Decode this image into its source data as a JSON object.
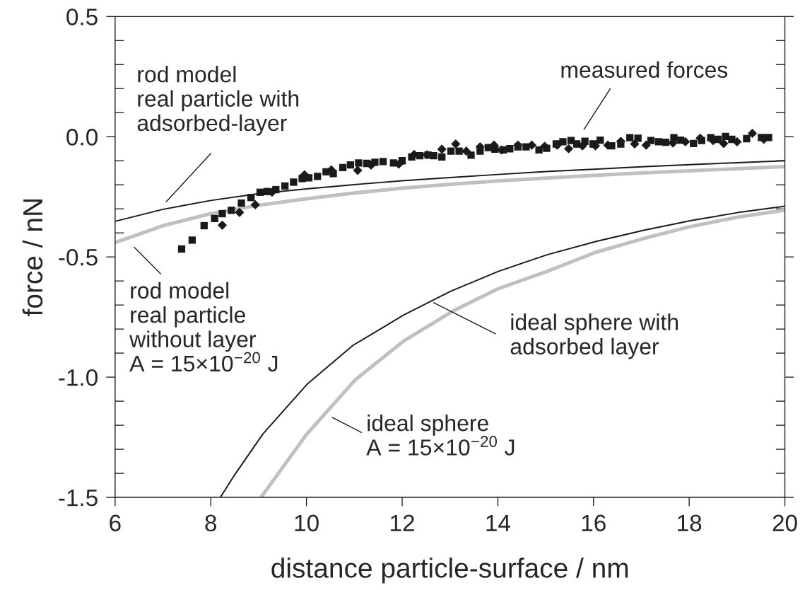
{
  "chart_data": {
    "type": "line",
    "xlabel": "distance particle-surface / nm",
    "ylabel": "force / nN",
    "xlim": [
      6,
      20
    ],
    "xticks": [
      6,
      8,
      10,
      12,
      14,
      16,
      18,
      20
    ],
    "ylim": [
      -1.5,
      0.5
    ],
    "yticks": [
      {
        "value": -1.5,
        "label": "-1.5"
      },
      {
        "value": -1.0,
        "label": "-1.0"
      },
      {
        "value": -0.5,
        "label": "-0.5"
      },
      {
        "value": 0.0,
        "label": "0.0"
      },
      {
        "value": 0.5,
        "label": "0.5"
      }
    ],
    "grid": false,
    "legend": false,
    "series": [
      {
        "type": "scatter",
        "marker": "square",
        "color": "#1a1a1a",
        "x": [
          7.39,
          7.61,
          7.86,
          8.08,
          8.24,
          8.43,
          8.64,
          8.84,
          9.03,
          9.18,
          9.36,
          9.55,
          9.73,
          9.91,
          10.05,
          10.23,
          10.41,
          10.56,
          10.76,
          10.92,
          11.09,
          11.26,
          11.43,
          11.6,
          11.82,
          12.0,
          12.2,
          12.37,
          12.54,
          12.66,
          12.83,
          13.02,
          13.19,
          13.44,
          13.63,
          13.8,
          13.94,
          14.11,
          14.25,
          14.42,
          14.59,
          14.86,
          15.02,
          15.22,
          15.36,
          15.53,
          15.65,
          15.82,
          15.99,
          16.14,
          16.38,
          16.57,
          16.76,
          16.93,
          17.2,
          17.36,
          17.51,
          17.68,
          17.82,
          18.09,
          18.26,
          18.45,
          18.6,
          18.76,
          18.89,
          19.2,
          19.51,
          19.66
        ],
        "values": [
          -0.467,
          -0.43,
          -0.37,
          -0.34,
          -0.32,
          -0.306,
          -0.276,
          -0.253,
          -0.231,
          -0.228,
          -0.22,
          -0.205,
          -0.189,
          -0.174,
          -0.171,
          -0.165,
          -0.146,
          -0.153,
          -0.128,
          -0.117,
          -0.109,
          -0.111,
          -0.106,
          -0.103,
          -0.109,
          -0.1,
          -0.084,
          -0.079,
          -0.076,
          -0.079,
          -0.084,
          -0.06,
          -0.06,
          -0.077,
          -0.06,
          -0.045,
          -0.052,
          -0.055,
          -0.05,
          -0.042,
          -0.042,
          -0.055,
          -0.048,
          -0.03,
          -0.021,
          -0.016,
          -0.03,
          -0.019,
          -0.03,
          -0.014,
          -0.038,
          -0.03,
          -0.004,
          -0.006,
          -0.016,
          -0.021,
          -0.023,
          -0.004,
          -0.014,
          -0.028,
          -0.016,
          -0.004,
          -0.011,
          0.001,
          -0.011,
          -0.008,
          -0.003,
          -0.003
        ]
      },
      {
        "type": "scatter",
        "marker": "diamond",
        "color": "#1a1a1a",
        "x": [
          8.24,
          8.6,
          8.93,
          9.28,
          9.96,
          10.52,
          11.07,
          11.35,
          11.93,
          12.25,
          12.52,
          12.83,
          13.12,
          13.34,
          13.63,
          13.92,
          14.08,
          14.42,
          14.71,
          14.98,
          15.24,
          15.48,
          15.77,
          16.04,
          16.3,
          16.57,
          16.86,
          17.1,
          17.66,
          17.92,
          18.23,
          18.5,
          18.72,
          19.0,
          19.32,
          19.56
        ],
        "values": [
          -0.368,
          -0.315,
          -0.283,
          -0.231,
          -0.158,
          -0.138,
          -0.14,
          -0.118,
          -0.114,
          -0.074,
          -0.075,
          -0.052,
          -0.03,
          -0.06,
          -0.042,
          -0.035,
          -0.055,
          -0.035,
          -0.035,
          -0.04,
          -0.035,
          -0.05,
          -0.038,
          -0.038,
          -0.035,
          -0.019,
          -0.03,
          -0.035,
          -0.026,
          -0.021,
          -0.006,
          -0.016,
          -0.028,
          -0.021,
          0.014,
          -0.011
        ]
      },
      {
        "color": "#1a1a1a",
        "x": [
          6,
          7,
          8,
          9,
          10,
          11,
          12,
          13,
          14,
          15,
          16,
          17,
          18,
          19,
          20
        ],
        "values": [
          -0.352,
          -0.302,
          -0.265,
          -0.237,
          -0.217,
          -0.199,
          -0.183,
          -0.17,
          -0.157,
          -0.145,
          -0.135,
          -0.125,
          -0.116,
          -0.108,
          -0.1
        ]
      },
      {
        "color": "#c0c0c0",
        "x": [
          6,
          7,
          8,
          9,
          10,
          11,
          12,
          13,
          14,
          15,
          16,
          17,
          18,
          19,
          20
        ],
        "values": [
          -0.44,
          -0.37,
          -0.32,
          -0.285,
          -0.258,
          -0.234,
          -0.214,
          -0.198,
          -0.184,
          -0.172,
          -0.161,
          -0.151,
          -0.142,
          -0.133,
          -0.124
        ]
      },
      {
        "color": "#1a1a1a",
        "x": [
          8.2,
          8.51,
          9.09,
          10.01,
          10.97,
          12.03,
          13.0,
          14.01,
          15.03,
          16.04,
          17.05,
          18.06,
          19.03,
          20.0
        ],
        "values": [
          -1.5,
          -1.403,
          -1.236,
          -1.03,
          -0.868,
          -0.742,
          -0.644,
          -0.56,
          -0.491,
          -0.436,
          -0.389,
          -0.348,
          -0.315,
          -0.289
        ]
      },
      {
        "color": "#c0c0c0",
        "x": [
          9.05,
          10.01,
          11.02,
          12.03,
          13.05,
          14.01,
          15.03,
          16.04,
          17.05,
          18.02,
          19.03,
          20.0
        ],
        "values": [
          -1.5,
          -1.236,
          -1.011,
          -0.85,
          -0.726,
          -0.632,
          -0.56,
          -0.481,
          -0.423,
          -0.374,
          -0.334,
          -0.305
        ]
      }
    ],
    "annotations": [
      "measured forces",
      "rod model\nreal particle with\nadsorbed-layer",
      "rod model\nreal particle\nwithout layer\nA = 15×10$^{−20}$ J",
      {
        "text": "ideal sphere with\nadsorbed layer",
        "x": 12.66,
        "y": -0.69
      },
      "ideal sphere\nA = 15×10$^{−20}$ J"
    ]
  }
}
